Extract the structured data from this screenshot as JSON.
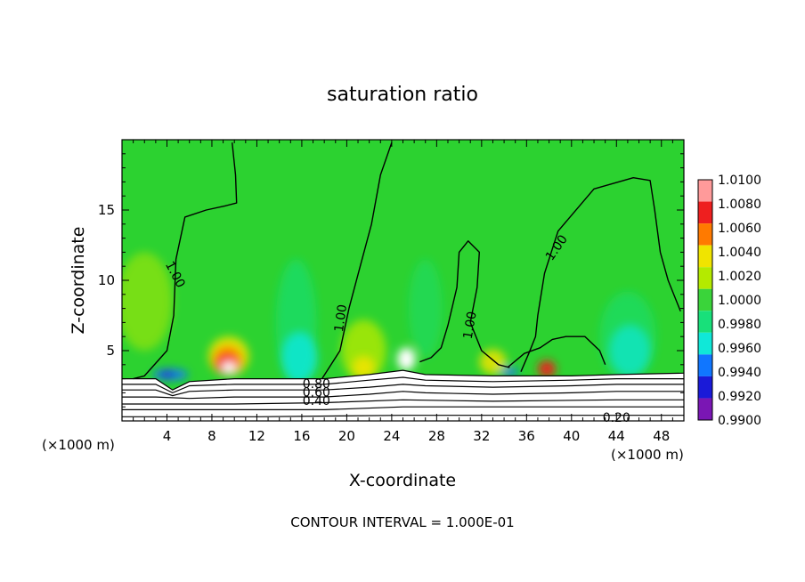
{
  "chart_data": {
    "type": "heatmap",
    "title": "saturation ratio",
    "xlabel": "X-coordinate",
    "ylabel": "Z-coordinate",
    "x_unit_left": "(×1000 m)",
    "x_unit_right": "(×1000 m)",
    "xlim": [
      0,
      50
    ],
    "ylim": [
      0,
      20
    ],
    "xticks": [
      4,
      8,
      12,
      16,
      20,
      24,
      28,
      32,
      36,
      40,
      44,
      48
    ],
    "yticks": [
      5,
      10,
      15
    ],
    "footer": "CONTOUR INTERVAL = 1.000E-01",
    "colorbar": {
      "levels": [
        "1.0100",
        "1.0080",
        "1.0060",
        "1.0040",
        "1.0020",
        "1.0000",
        "0.9980",
        "0.9960",
        "0.9940",
        "0.9920",
        "0.9900"
      ],
      "colors": [
        "#ff9a9a",
        "#ee1f1f",
        "#ff7a00",
        "#f0e400",
        "#b4ea00",
        "#3ad43a",
        "#18e07a",
        "#10e8d8",
        "#1076ff",
        "#1a1ad8",
        "#7a16b4"
      ]
    },
    "background_color": "#2cd230",
    "contour_labels": [
      {
        "text": "1.00",
        "x": 4.7,
        "z": 10.4,
        "angle": 62
      },
      {
        "text": "1.00",
        "x": 19.5,
        "z": 7.3,
        "angle": -82
      },
      {
        "text": "1.00",
        "x": 31.0,
        "z": 6.8,
        "angle": -80
      },
      {
        "text": "1.00",
        "x": 38.7,
        "z": 12.3,
        "angle": -55
      },
      {
        "text": "0.80",
        "x": 17.3,
        "z": 2.6,
        "angle": 0
      },
      {
        "text": "0.60",
        "x": 17.3,
        "z": 2.0,
        "angle": 0
      },
      {
        "text": "0.40",
        "x": 17.3,
        "z": 1.4,
        "angle": 0
      },
      {
        "text": "0.20",
        "x": 44.0,
        "z": 0.2,
        "angle": 0
      }
    ],
    "contours_1_00": [
      [
        [
          1,
          3.0
        ],
        [
          2,
          3.2
        ],
        [
          4,
          5.0
        ],
        [
          4.6,
          7.5
        ],
        [
          4.8,
          11.5
        ],
        [
          5.6,
          14.5
        ],
        [
          7.5,
          15.0
        ],
        [
          9.2,
          15.3
        ],
        [
          10.2,
          15.5
        ],
        [
          10.1,
          17.5
        ],
        [
          9.8,
          19.8
        ]
      ],
      [
        [
          17.8,
          3.0
        ],
        [
          19.4,
          5.0
        ],
        [
          20.2,
          8.0
        ],
        [
          21.2,
          11.0
        ],
        [
          22.2,
          14.0
        ],
        [
          23.0,
          17.5
        ],
        [
          24.0,
          19.8
        ]
      ],
      [
        [
          26.5,
          4.2
        ],
        [
          27.5,
          4.5
        ],
        [
          28.4,
          5.2
        ],
        [
          29.0,
          6.8
        ],
        [
          29.8,
          9.5
        ],
        [
          30.0,
          12.0
        ],
        [
          30.8,
          12.8
        ],
        [
          31.8,
          12.0
        ],
        [
          31.6,
          9.5
        ],
        [
          31.0,
          7.0
        ],
        [
          32.0,
          5.0
        ],
        [
          33.5,
          4.0
        ],
        [
          34.5,
          3.8
        ]
      ],
      [
        [
          35.5,
          3.5
        ],
        [
          36.2,
          4.8
        ],
        [
          36.8,
          6.0
        ],
        [
          37.0,
          7.5
        ],
        [
          37.6,
          10.5
        ],
        [
          38.8,
          13.5
        ],
        [
          42.0,
          16.5
        ],
        [
          45.5,
          17.3
        ],
        [
          47.0,
          17.1
        ],
        [
          47.4,
          15.0
        ],
        [
          47.9,
          12.0
        ],
        [
          48.6,
          10.0
        ],
        [
          49.7,
          7.8
        ]
      ],
      [
        [
          34.3,
          3.8
        ],
        [
          35.8,
          4.8
        ],
        [
          37.2,
          5.2
        ],
        [
          38.3,
          5.8
        ],
        [
          39.5,
          6.0
        ],
        [
          41.2,
          6.0
        ],
        [
          42.5,
          5.0
        ],
        [
          43.0,
          4.0
        ]
      ]
    ],
    "ground_contours": [
      [
        [
          0,
          3.0
        ],
        [
          3,
          3.0
        ],
        [
          4.5,
          2.2
        ],
        [
          6,
          2.8
        ],
        [
          10,
          3.0
        ],
        [
          18,
          3.0
        ],
        [
          22,
          3.3
        ],
        [
          25,
          3.6
        ],
        [
          27,
          3.3
        ],
        [
          33,
          3.2
        ],
        [
          40,
          3.2
        ],
        [
          44,
          3.3
        ],
        [
          50,
          3.4
        ]
      ],
      [
        [
          0,
          2.6
        ],
        [
          3,
          2.6
        ],
        [
          4.5,
          2.0
        ],
        [
          6,
          2.5
        ],
        [
          10,
          2.6
        ],
        [
          18,
          2.6
        ],
        [
          22,
          2.9
        ],
        [
          25,
          3.1
        ],
        [
          27,
          2.9
        ],
        [
          33,
          2.8
        ],
        [
          40,
          2.9
        ],
        [
          44,
          3.0
        ],
        [
          50,
          3.0
        ]
      ],
      [
        [
          0,
          2.2
        ],
        [
          3,
          2.2
        ],
        [
          4.5,
          1.8
        ],
        [
          6,
          2.1
        ],
        [
          10,
          2.2
        ],
        [
          18,
          2.2
        ],
        [
          22,
          2.4
        ],
        [
          25,
          2.6
        ],
        [
          27,
          2.5
        ],
        [
          33,
          2.4
        ],
        [
          40,
          2.5
        ],
        [
          44,
          2.6
        ],
        [
          50,
          2.6
        ]
      ],
      [
        [
          0,
          1.7
        ],
        [
          3,
          1.7
        ],
        [
          6,
          1.6
        ],
        [
          10,
          1.7
        ],
        [
          18,
          1.7
        ],
        [
          22,
          1.9
        ],
        [
          25,
          2.1
        ],
        [
          27,
          2.0
        ],
        [
          33,
          1.9
        ],
        [
          40,
          2.0
        ],
        [
          44,
          2.1
        ],
        [
          50,
          2.1
        ]
      ],
      [
        [
          0,
          1.2
        ],
        [
          10,
          1.2
        ],
        [
          18,
          1.3
        ],
        [
          25,
          1.5
        ],
        [
          33,
          1.4
        ],
        [
          44,
          1.5
        ],
        [
          50,
          1.5
        ]
      ],
      [
        [
          0,
          0.8
        ],
        [
          10,
          0.8
        ],
        [
          18,
          0.8
        ],
        [
          25,
          1.0
        ],
        [
          33,
          1.0
        ],
        [
          44,
          1.0
        ],
        [
          50,
          1.0
        ]
      ],
      [
        [
          0,
          0.3
        ],
        [
          12,
          0.3
        ],
        [
          25,
          0.4
        ],
        [
          44,
          0.4
        ],
        [
          50,
          0.4
        ]
      ]
    ],
    "field_features": [
      {
        "x": 2.0,
        "z": 8.5,
        "rx": 2.5,
        "rz": 3.5,
        "color": "#b4ea00",
        "opacity": 0.55
      },
      {
        "x": 9.5,
        "z": 4.6,
        "rx": 1.8,
        "rz": 1.4,
        "color": "#f0e400",
        "opacity": 0.9
      },
      {
        "x": 9.4,
        "z": 4.3,
        "rx": 1.3,
        "rz": 1.0,
        "color": "#ff7a00",
        "opacity": 0.95
      },
      {
        "x": 9.3,
        "z": 4.0,
        "rx": 0.9,
        "rz": 0.7,
        "color": "#ee1f1f",
        "opacity": 1.0
      },
      {
        "x": 9.5,
        "z": 3.8,
        "rx": 0.6,
        "rz": 0.4,
        "color": "#ffffff",
        "opacity": 1.0
      },
      {
        "x": 15.5,
        "z": 7.0,
        "rx": 1.8,
        "rz": 4.5,
        "color": "#18e07a",
        "opacity": 0.6
      },
      {
        "x": 15.8,
        "z": 4.5,
        "rx": 1.6,
        "rz": 1.8,
        "color": "#10e8d8",
        "opacity": 0.85
      },
      {
        "x": 21.5,
        "z": 5.0,
        "rx": 2.0,
        "rz": 2.2,
        "color": "#b4ea00",
        "opacity": 0.8
      },
      {
        "x": 21.5,
        "z": 3.8,
        "rx": 1.0,
        "rz": 0.8,
        "color": "#f0e400",
        "opacity": 0.9
      },
      {
        "x": 27.0,
        "z": 8.0,
        "rx": 1.5,
        "rz": 3.5,
        "color": "#18e07a",
        "opacity": 0.45
      },
      {
        "x": 25.3,
        "z": 4.4,
        "rx": 0.8,
        "rz": 0.8,
        "color": "#ffffff",
        "opacity": 1.0
      },
      {
        "x": 33.0,
        "z": 4.2,
        "rx": 1.2,
        "rz": 0.9,
        "color": "#f0e400",
        "opacity": 0.85
      },
      {
        "x": 37.8,
        "z": 3.7,
        "rx": 0.8,
        "rz": 0.6,
        "color": "#ee1f1f",
        "opacity": 0.95
      },
      {
        "x": 45.0,
        "z": 6.0,
        "rx": 2.5,
        "rz": 3.2,
        "color": "#18e07a",
        "opacity": 0.55
      },
      {
        "x": 45.2,
        "z": 5.0,
        "rx": 1.8,
        "rz": 1.8,
        "color": "#10e8d8",
        "opacity": 0.7
      },
      {
        "x": 4.3,
        "z": 3.3,
        "rx": 1.6,
        "rz": 0.4,
        "color": "#1076ff",
        "opacity": 0.9
      },
      {
        "x": 4.0,
        "z": 3.3,
        "rx": 0.6,
        "rz": 0.25,
        "color": "#1a1ad8",
        "opacity": 1.0
      },
      {
        "x": 34.5,
        "z": 3.5,
        "rx": 0.8,
        "rz": 0.3,
        "color": "#1076ff",
        "opacity": 0.9
      }
    ]
  }
}
